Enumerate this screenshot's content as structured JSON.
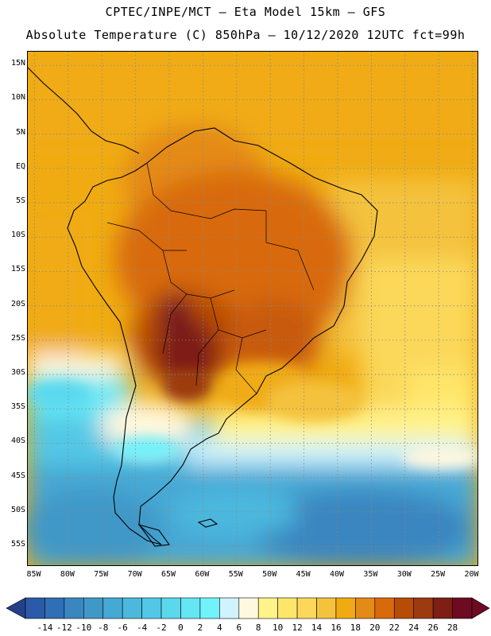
{
  "header": {
    "line1": "CPTEC/INPE/MCT –  Eta Model 15km – GFS",
    "line2": "Absolute Temperature (C) 850hPa – 10/12/2020 12UTC fct=99h"
  },
  "axes": {
    "lat_labels": [
      "15N",
      "10N",
      "5N",
      "EQ",
      "5S",
      "10S",
      "15S",
      "20S",
      "25S",
      "30S",
      "35S",
      "40S",
      "45S",
      "50S",
      "55S"
    ],
    "lat_values": [
      15,
      10,
      5,
      0,
      -5,
      -10,
      -15,
      -20,
      -25,
      -30,
      -35,
      -40,
      -45,
      -50,
      -55
    ],
    "lon_labels": [
      "85W",
      "80W",
      "75W",
      "70W",
      "65W",
      "60W",
      "55W",
      "50W",
      "45W",
      "40W",
      "35W",
      "30W",
      "25W",
      "20W"
    ],
    "lon_values": [
      -85,
      -80,
      -75,
      -70,
      -65,
      -60,
      -55,
      -50,
      -45,
      -40,
      -35,
      -30,
      -25,
      -20
    ],
    "lat_range": [
      -58,
      17
    ],
    "lon_range": [
      -86,
      -19
    ]
  },
  "colorbar": {
    "ticks": [
      "-14",
      "-12",
      "-10",
      "-8",
      "-6",
      "-4",
      "-2",
      "0",
      "2",
      "4",
      "6",
      "8",
      "10",
      "12",
      "14",
      "16",
      "18",
      "20",
      "22",
      "24",
      "26",
      "28"
    ],
    "colors": [
      "#2a5aa8",
      "#2f6fb5",
      "#3a86c0",
      "#4098c8",
      "#46a8d4",
      "#4cb8de",
      "#52c8e6",
      "#5ad8ee",
      "#64e6f4",
      "#72f2fb",
      "#cff4ff",
      "#fff8de",
      "#fff38c",
      "#ffe66b",
      "#fbd85a",
      "#f4c23c",
      "#f0ab12",
      "#e48a16",
      "#d86a0c",
      "#b74c06",
      "#9c3a10",
      "#7e1e14",
      "#6e0a22"
    ],
    "under_color": "#25408a",
    "over_color": "#6e0a22"
  }
}
